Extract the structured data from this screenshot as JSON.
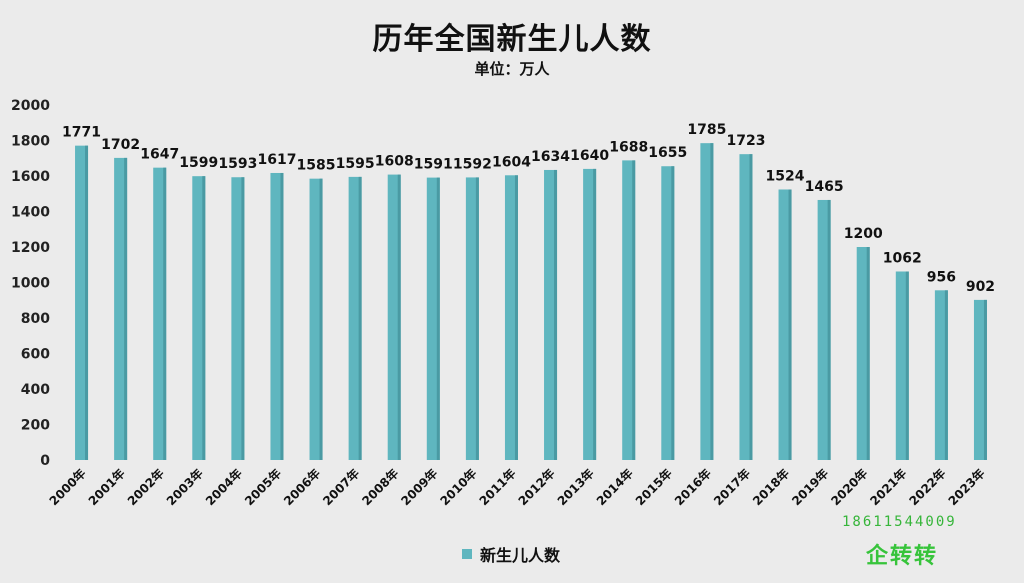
{
  "chart_data": {
    "type": "bar",
    "title": "历年全国新生儿人数",
    "subtitle": "单位：万人",
    "categories": [
      "2000年",
      "2001年",
      "2002年",
      "2003年",
      "2004年",
      "2005年",
      "2006年",
      "2007年",
      "2008年",
      "2009年",
      "2010年",
      "2011年",
      "2012年",
      "2013年",
      "2014年",
      "2015年",
      "2016年",
      "2017年",
      "2018年",
      "2019年",
      "2020年",
      "2021年",
      "2022年",
      "2023年"
    ],
    "series": [
      {
        "name": "新生儿人数",
        "values": [
          1771,
          1702,
          1647,
          1599,
          1593,
          1617,
          1585,
          1595,
          1608,
          1591,
          1592,
          1604,
          1634,
          1640,
          1688,
          1655,
          1785,
          1723,
          1524,
          1465,
          1200,
          1062,
          956,
          902
        ]
      }
    ],
    "ylim": [
      0,
      2000
    ],
    "yticks": [
      0,
      200,
      400,
      600,
      800,
      1000,
      1200,
      1400,
      1600,
      1800,
      2000
    ],
    "grid": false,
    "legend": "bottom-center",
    "bar_color": "#5fb6bf",
    "bar_color_dark": "#4a9aa3"
  },
  "watermark": {
    "phone": "18611544009",
    "brand": "企转转",
    "color": "#36b53a"
  }
}
